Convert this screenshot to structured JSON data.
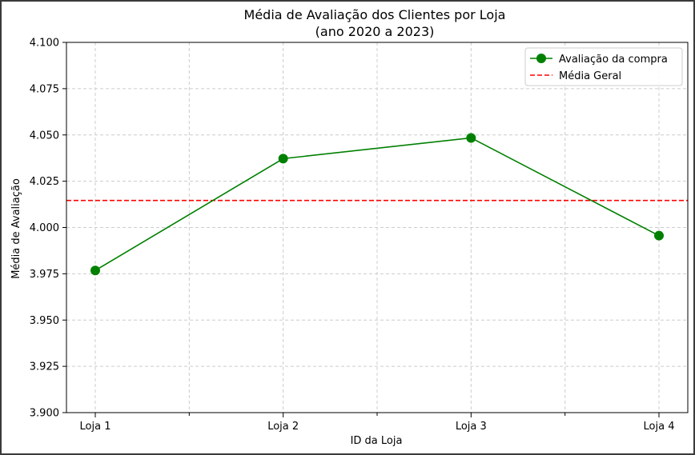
{
  "chart_data": {
    "type": "line",
    "title": "Média de Avaliação dos Clientes por Loja",
    "subtitle": "(ano 2020 a 2023)",
    "xlabel": "ID da Loja",
    "ylabel": "Média de Avaliação",
    "categories": [
      "Loja 1",
      "Loja 2",
      "Loja 3",
      "Loja 4"
    ],
    "series": [
      {
        "name": "Avaliação da compra",
        "values": [
          3.9768,
          4.0372,
          4.0484,
          3.9956
        ],
        "color": "#008000",
        "marker": "circle"
      }
    ],
    "reference_line": {
      "name": "Média Geral",
      "value": 4.0146,
      "color": "#ff0000",
      "style": "dashed"
    },
    "ylim": [
      3.9,
      4.1
    ],
    "yticks": [
      "3.900",
      "3.925",
      "3.950",
      "3.975",
      "4.000",
      "4.025",
      "4.050",
      "4.075",
      "4.100"
    ],
    "grid": true,
    "legend_position": "top-right"
  }
}
